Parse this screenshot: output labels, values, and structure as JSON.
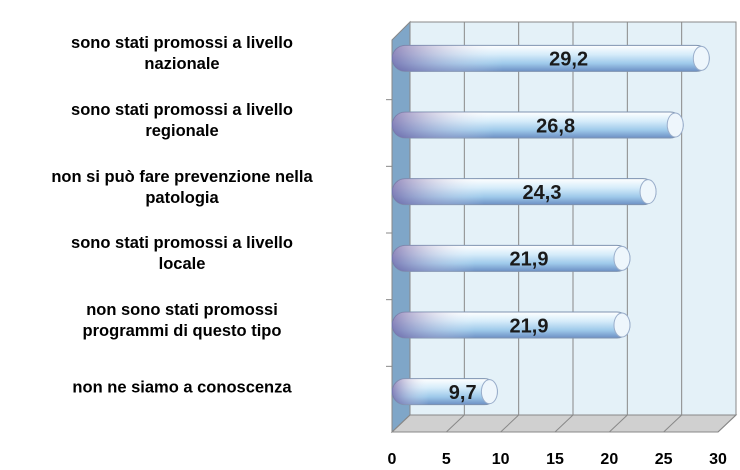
{
  "chart_data": {
    "type": "bar",
    "orientation": "horizontal",
    "categories": [
      "sono stati promossi a livello\nnazionale",
      "sono stati promossi a livello\nregionale",
      "non si può fare prevenzione nella\npatologia",
      "sono stati promossi a livello\nlocale",
      "non sono stati promossi\nprogrammi di questo tipo",
      "non ne siamo a conoscenza"
    ],
    "values": [
      29.2,
      26.8,
      24.3,
      21.9,
      21.9,
      9.7
    ],
    "value_labels": [
      "29,2",
      "26,8",
      "24,3",
      "21,9",
      "21,9",
      "9,7"
    ],
    "color": "#b9dcf2",
    "xlim": [
      0,
      30
    ],
    "xticks": [
      0,
      5,
      10,
      15,
      20,
      25,
      30
    ],
    "grid": true
  }
}
